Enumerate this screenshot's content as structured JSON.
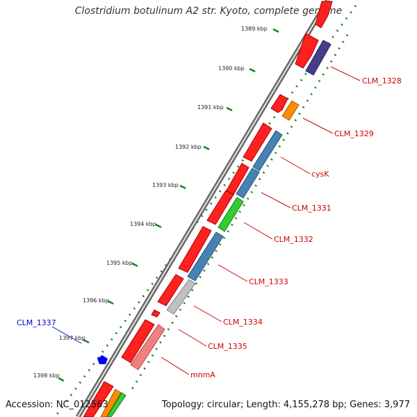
{
  "title": "Clostridium botulinum A2 str. Kyoto, complete genome",
  "footer": {
    "accession": "Accession: NC_012563",
    "topology": "Topology: circular; Length: 4,155,278 bp; Genes: 3,977"
  },
  "colors": {
    "red": "#ff0000",
    "blue": "#4682b4",
    "purple": "#483d8b",
    "orange": "#ff8c00",
    "green": "#32cd32",
    "gray": "#c0c0c0",
    "pink": "#f08080",
    "tick": "#1a7f1a",
    "label_red": "#cc0000",
    "label_blue": "#0000cc"
  },
  "ticks": [
    "1389 kbp",
    "1390 kbp",
    "1391 kbp",
    "1392 kbp",
    "1393 kbp",
    "1394 kbp",
    "1395 kbp",
    "1396 kbp",
    "1397 kbp",
    "1398 kbp"
  ],
  "gene_labels": [
    "CLM_1328",
    "CLM_1329",
    "cysK",
    "CLM_1331",
    "CLM_1332",
    "CLM_1333",
    "CLM_1334",
    "CLM_1335",
    "mnmA"
  ],
  "left_labels": [
    "CLM_1337"
  ]
}
